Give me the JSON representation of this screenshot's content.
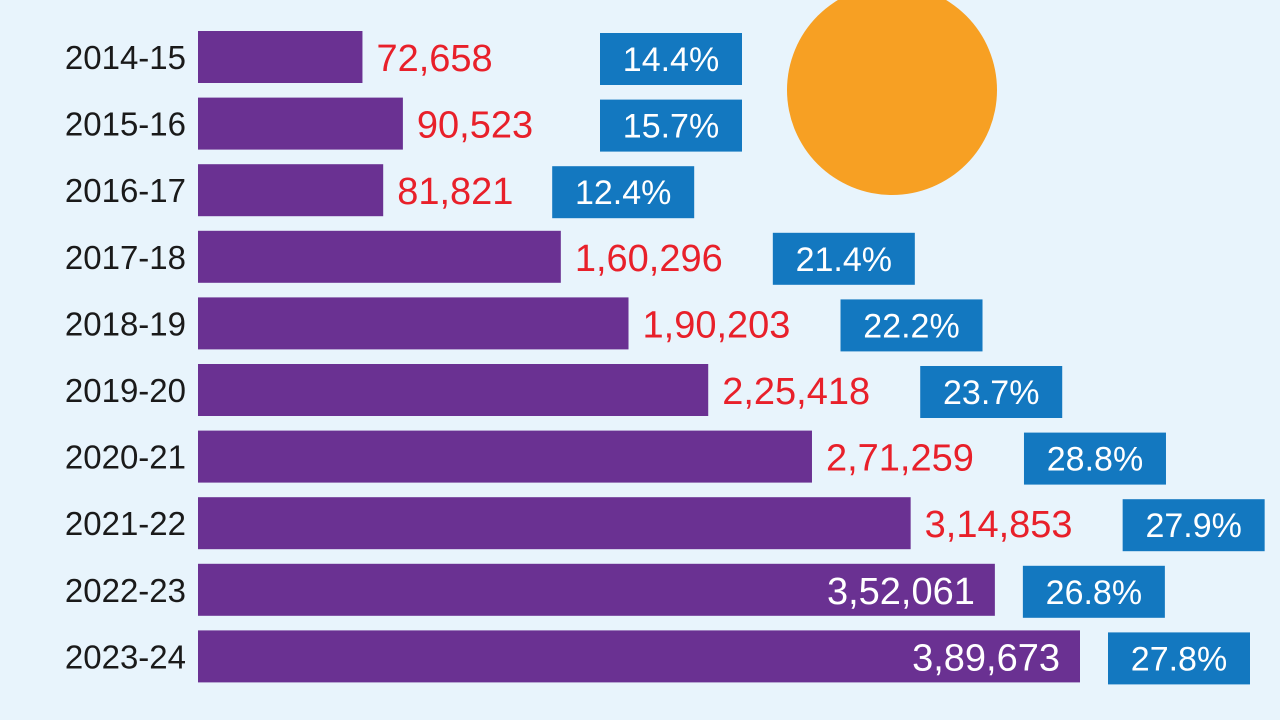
{
  "chart_data": {
    "type": "bar",
    "orientation": "horizontal",
    "title": "",
    "xlabel": "",
    "ylabel": "",
    "grid": false,
    "categories": [
      "2014-15",
      "2015-16",
      "2016-17",
      "2017-18",
      "2018-19",
      "2019-20",
      "2020-21",
      "2021-22",
      "2022-23",
      "2023-24"
    ],
    "values": [
      72658,
      90523,
      81821,
      160296,
      190203,
      225418,
      271259,
      314853,
      352061,
      389673
    ],
    "value_labels": [
      "72,658",
      "90,523",
      "81,821",
      "1,60,296",
      "1,90,203",
      "2,25,418",
      "2,71,259",
      "3,14,853",
      "3,52,061",
      "3,89,673"
    ],
    "percent_labels": [
      "14.4%",
      "15.7%",
      "12.4%",
      "21.4%",
      "22.2%",
      "23.7%",
      "28.8%",
      "27.9%",
      "26.8%",
      "27.8%"
    ],
    "xlim": [
      0,
      389673
    ]
  },
  "colors": {
    "background": "#e8f4fc",
    "bar": "#6a3192",
    "value_text": "#e8202a",
    "value_text_inside": "#ffffff",
    "percent_box": "#1378c0",
    "percent_text": "#ffffff",
    "circle": "#f7a023"
  },
  "decorations": {
    "circle": "orange-circle"
  }
}
